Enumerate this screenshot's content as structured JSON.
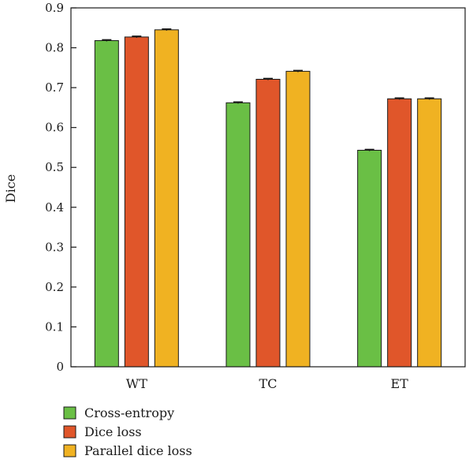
{
  "chart_data": {
    "type": "bar",
    "title": "",
    "xlabel": "",
    "ylabel": "Dice",
    "ylim": [
      0,
      0.9
    ],
    "yticks": [
      "0",
      "0.1",
      "0.2",
      "0.3",
      "0.4",
      "0.5",
      "0.6",
      "0.7",
      "0.8",
      "0.9"
    ],
    "categories": [
      "WT",
      "TC",
      "ET"
    ],
    "grid": false,
    "legend_position": "bottom-left",
    "series": [
      {
        "name": "Cross-entropy",
        "color": "#6abf45",
        "values": [
          0.818,
          0.662,
          0.543
        ],
        "errors": [
          0.002,
          0.002,
          0.002
        ]
      },
      {
        "name": "Dice loss",
        "color": "#e0562a",
        "values": [
          0.827,
          0.721,
          0.672
        ],
        "errors": [
          0.002,
          0.002,
          0.002
        ]
      },
      {
        "name": "Parallel dice loss",
        "color": "#f0b222",
        "values": [
          0.845,
          0.741,
          0.672
        ],
        "errors": [
          0.002,
          0.002,
          0.002
        ]
      }
    ]
  }
}
